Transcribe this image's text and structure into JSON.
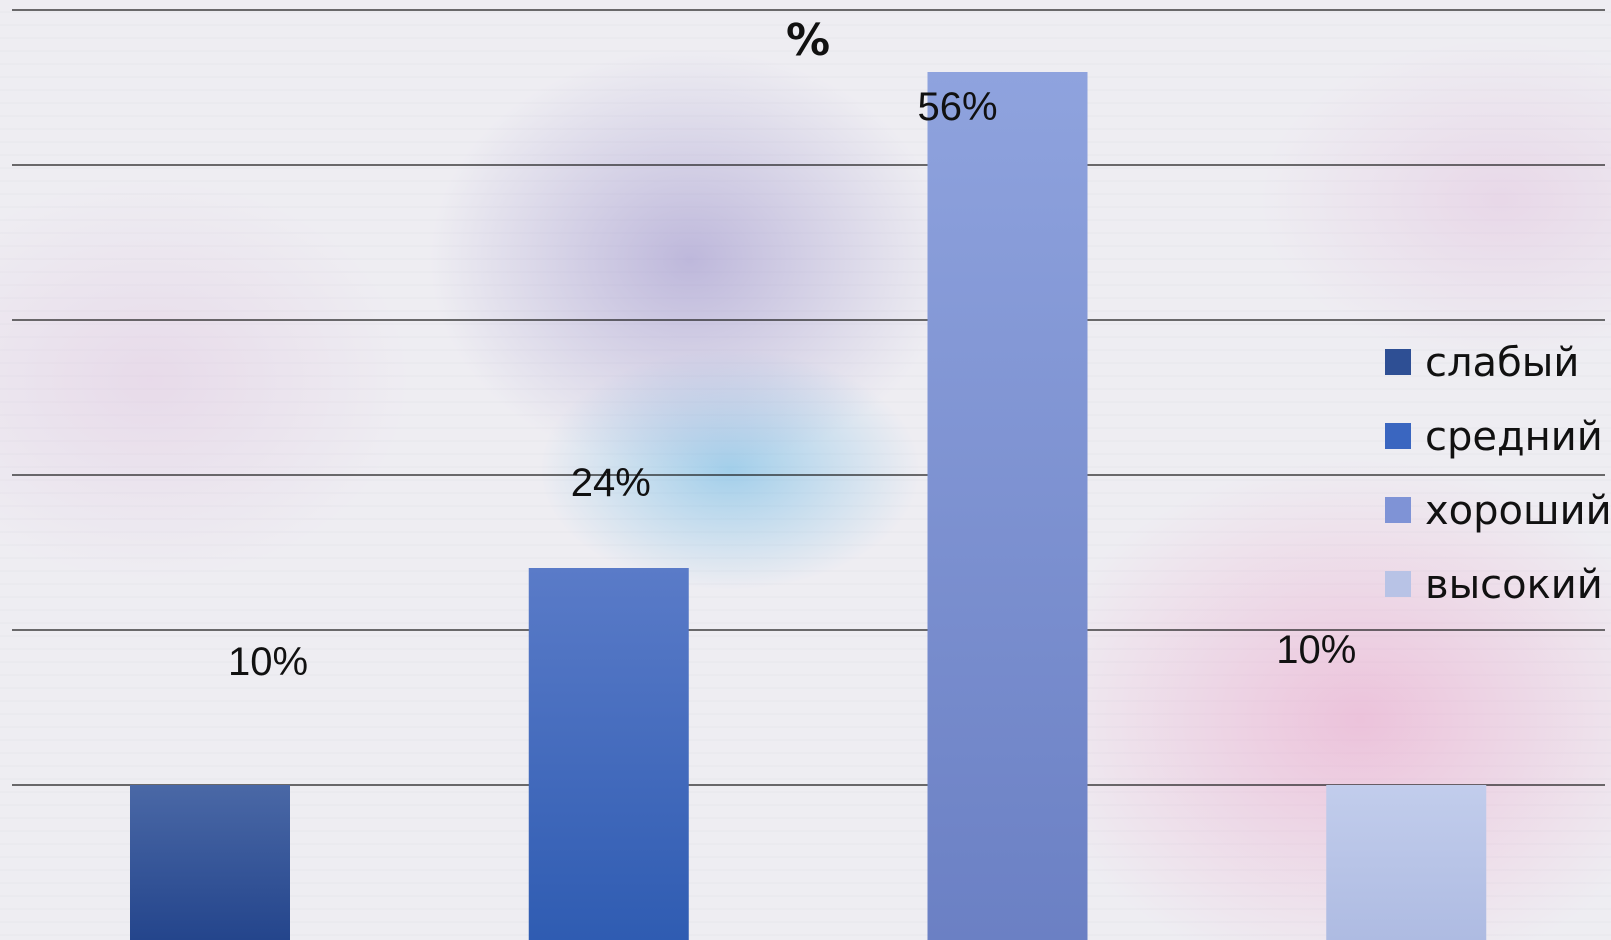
{
  "chart_data": {
    "type": "bar",
    "title": "%",
    "xlabel": "",
    "ylabel": "",
    "ylim": [
      0,
      60
    ],
    "grid": true,
    "legend_position": "right",
    "categories": [
      "слабый",
      "средний",
      "хороший",
      "высокий"
    ],
    "values": [
      10,
      24,
      56,
      10
    ],
    "data_labels": [
      "10%",
      "24%",
      "56%",
      "10%"
    ],
    "colors": [
      "#2e4f94",
      "#3a66c0",
      "#7f93d6",
      "#b8c3e6"
    ]
  }
}
